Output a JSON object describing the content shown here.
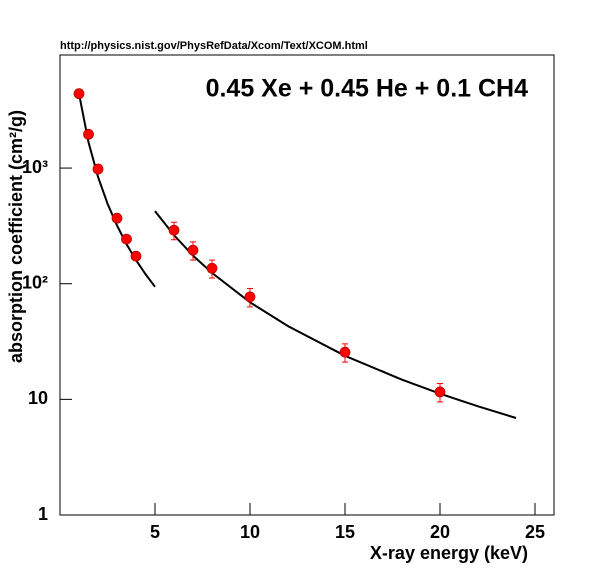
{
  "chart_data": {
    "type": "scatter",
    "source": "http://physics.nist.gov/PhysRefData/Xcom/Text/XCOM.html",
    "title": "0.45 Xe + 0.45 He + 0.1 CH4",
    "x_label": "X-ray energy (keV)",
    "y_label": "absorption coefficient (cm²/g)",
    "xlim": [
      0,
      26
    ],
    "ylim": [
      1,
      9500
    ],
    "log_y": true,
    "xticks": [
      5,
      10,
      15,
      20,
      25
    ],
    "yticks": [
      1,
      10,
      {
        "value": 100,
        "label": "10²"
      },
      {
        "value": 1000,
        "label": "10³"
      }
    ],
    "series": [
      {
        "color": "#ff0000",
        "x": [
          1,
          1.5,
          2,
          3,
          3.5,
          4,
          6,
          7,
          8,
          10,
          15,
          20
        ],
        "values": [
          4400,
          1960,
          980,
          369,
          243,
          173,
          290,
          195,
          136,
          77,
          25.6,
          11.6
        ],
        "errors": [
          null,
          null,
          null,
          null,
          null,
          null,
          50,
          35,
          24,
          14,
          4.6,
          2.1
        ]
      }
    ],
    "fits": [
      {
        "color": "#000000",
        "x": [
          1,
          1.5,
          2,
          2.5,
          3,
          3.5,
          4,
          4.5,
          5
        ],
        "values": [
          4400,
          1670,
          840,
          493,
          319,
          220,
          160,
          121,
          94
        ]
      },
      {
        "color": "#000000",
        "x": [
          5,
          6,
          7,
          8,
          10,
          12,
          15,
          18,
          20,
          22,
          24
        ],
        "values": [
          424,
          263,
          175,
          124,
          69,
          43,
          23.8,
          14.8,
          11.2,
          8.7,
          6.9
        ]
      }
    ]
  }
}
